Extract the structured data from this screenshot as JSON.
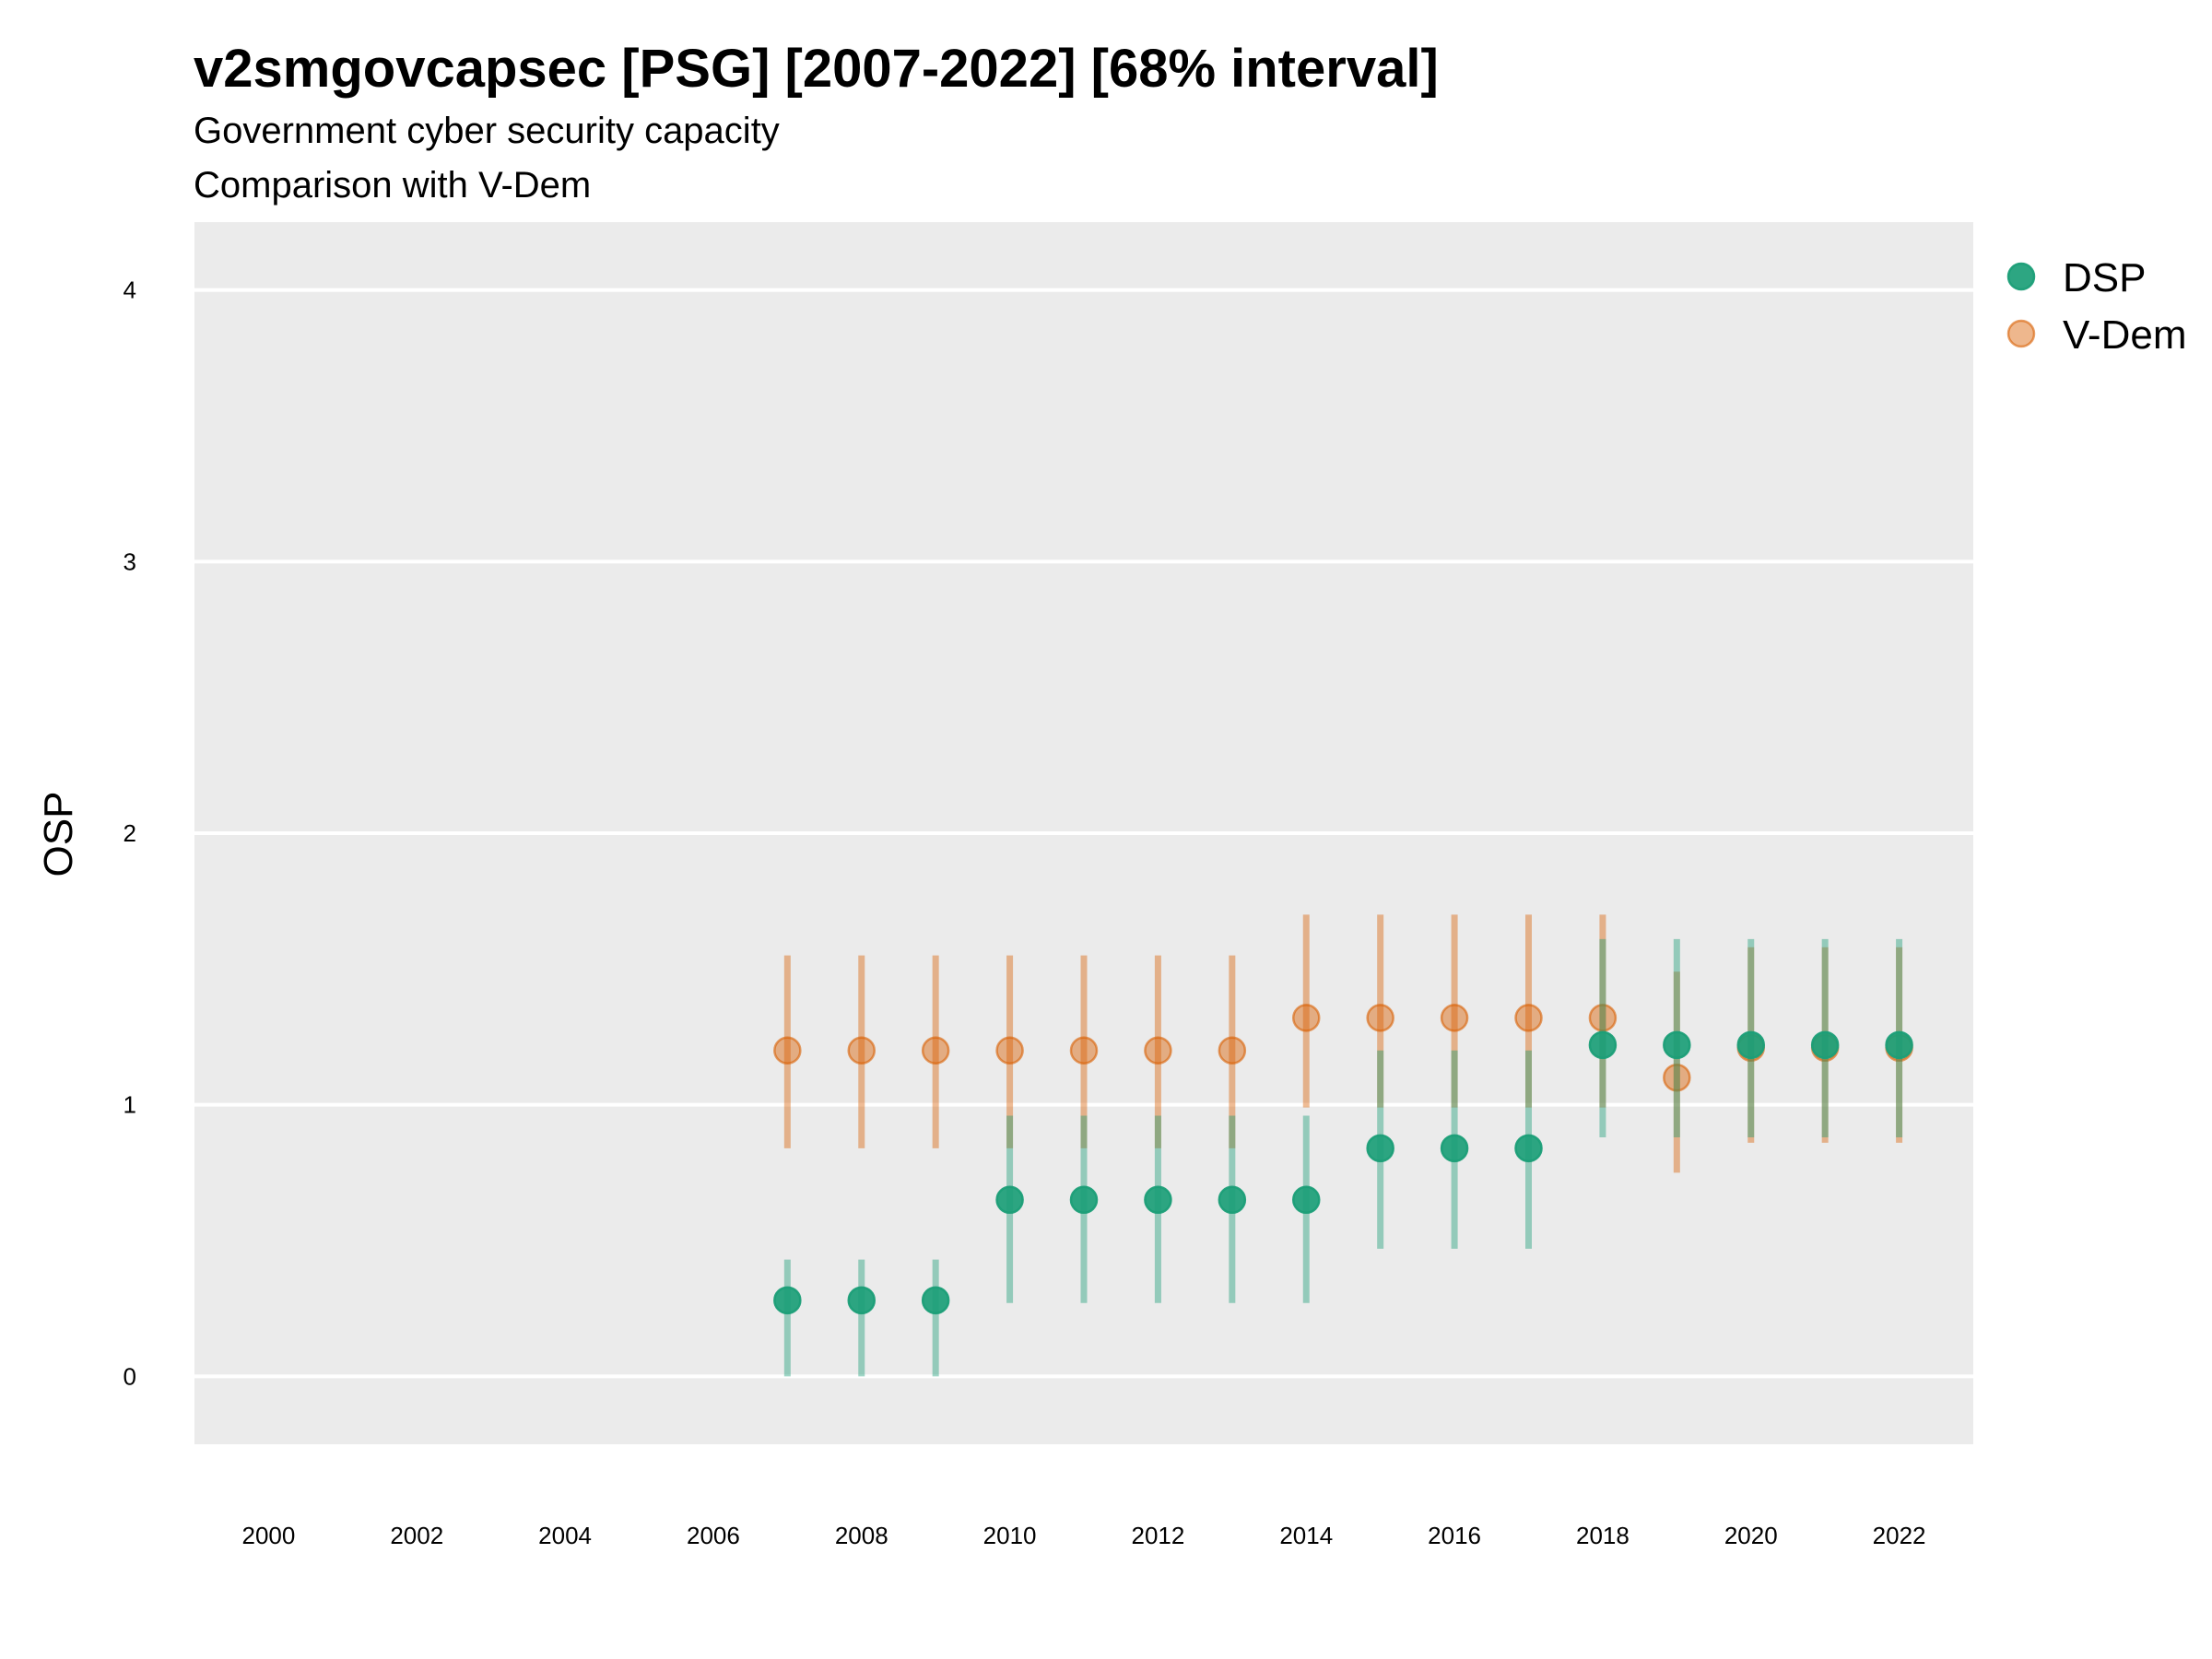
{
  "chart_data": {
    "type": "scatter",
    "title": "v2smgovcapsec [PSG] [2007-2022] [68% interval]",
    "subtitle": "Government cyber security capacity",
    "subtitle2": "Comparison with V-Dem",
    "xlabel": "",
    "ylabel": "OSP",
    "xlim": [
      1999,
      2023
    ],
    "ylim": [
      -0.25,
      4.25
    ],
    "x_ticks": [
      2000,
      2002,
      2004,
      2006,
      2008,
      2010,
      2012,
      2014,
      2016,
      2018,
      2020,
      2022
    ],
    "y_ticks": [
      0,
      1,
      2,
      3,
      4
    ],
    "grid": true,
    "legend_position": "top-right",
    "series": [
      {
        "name": "DSP",
        "color": "#1b9e77",
        "x": [
          2007,
          2008,
          2009,
          2010,
          2011,
          2012,
          2013,
          2014,
          2015,
          2016,
          2017,
          2018,
          2019,
          2020,
          2021,
          2022
        ],
        "y": [
          0.28,
          0.28,
          0.28,
          0.65,
          0.65,
          0.65,
          0.65,
          0.65,
          0.84,
          0.84,
          0.84,
          1.22,
          1.22,
          1.22,
          1.22,
          1.22
        ],
        "lower": [
          0.0,
          0.0,
          0.0,
          0.27,
          0.27,
          0.27,
          0.27,
          0.27,
          0.47,
          0.47,
          0.47,
          0.88,
          0.88,
          0.88,
          0.88,
          0.88
        ],
        "upper": [
          0.43,
          0.43,
          0.43,
          0.96,
          0.96,
          0.96,
          0.96,
          0.96,
          1.2,
          1.2,
          1.2,
          1.61,
          1.61,
          1.61,
          1.61,
          1.61
        ]
      },
      {
        "name": "V-Dem",
        "color": "#d95f02",
        "x": [
          2007,
          2008,
          2009,
          2010,
          2011,
          2012,
          2013,
          2014,
          2015,
          2016,
          2017,
          2018,
          2019,
          2020,
          2021,
          2022
        ],
        "y": [
          1.2,
          1.2,
          1.2,
          1.2,
          1.2,
          1.2,
          1.2,
          1.32,
          1.32,
          1.32,
          1.32,
          1.32,
          1.1,
          1.21,
          1.21,
          1.21
        ],
        "lower": [
          0.84,
          0.84,
          0.84,
          0.84,
          0.84,
          0.84,
          0.84,
          0.99,
          0.99,
          0.99,
          0.99,
          0.99,
          0.75,
          0.86,
          0.86,
          0.86
        ],
        "upper": [
          1.55,
          1.55,
          1.55,
          1.55,
          1.55,
          1.55,
          1.55,
          1.7,
          1.7,
          1.7,
          1.7,
          1.7,
          1.49,
          1.58,
          1.58,
          1.58
        ]
      }
    ]
  }
}
